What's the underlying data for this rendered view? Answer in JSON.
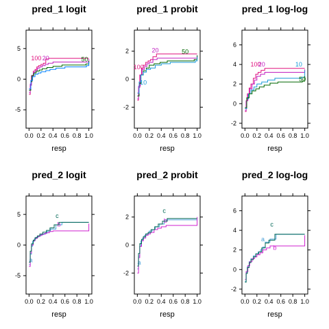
{
  "chart_data": [
    {
      "type": "line",
      "title": "pred_1 logit",
      "xlabel": "resp",
      "ylabel": "",
      "xlim": [
        -0.05,
        1.05
      ],
      "ylim": [
        -8,
        8
      ],
      "xticks": [
        "0.0",
        "0.2",
        "0.4",
        "0.6",
        "0.8",
        "1.0"
      ],
      "yticks": [
        "-5",
        "0",
        "5"
      ],
      "series": [
        {
          "name": "100",
          "color": "#e0117f",
          "label_x": 0.12,
          "label_y": 3.1,
          "x": [
            0.0,
            0.02,
            0.04,
            0.07,
            0.1,
            0.13,
            0.16,
            0.2,
            0.24,
            0.28,
            0.33,
            0.6,
            0.98,
            1.0
          ],
          "y": [
            -2.5,
            -1.0,
            0.5,
            1.3,
            1.6,
            2.0,
            2.2,
            2.4,
            2.6,
            3.3,
            3.4,
            3.4,
            3.4,
            3.4
          ]
        },
        {
          "name": "20",
          "color": "#c020c0",
          "label_x": 0.28,
          "label_y": 3.1,
          "x": [
            0.0,
            0.02,
            0.04,
            0.07,
            0.1,
            0.14,
            0.18,
            0.22,
            0.27,
            0.32,
            0.4,
            0.97,
            1.0
          ],
          "y": [
            -2.2,
            -0.8,
            0.6,
            1.1,
            1.4,
            1.8,
            2.0,
            2.2,
            2.4,
            2.6,
            2.8,
            2.8,
            3.3
          ]
        },
        {
          "name": "50",
          "color": "#006600",
          "label_x": 0.93,
          "label_y": 2.9,
          "x": [
            0.0,
            0.03,
            0.05,
            0.08,
            0.12,
            0.17,
            0.22,
            0.3,
            0.4,
            0.55,
            0.95,
            1.0
          ],
          "y": [
            -1.8,
            -0.4,
            0.6,
            1.0,
            1.3,
            1.5,
            1.7,
            1.9,
            2.1,
            2.3,
            2.5,
            3.0
          ]
        },
        {
          "name": "",
          "color": "#0080ff",
          "label_x": 0.96,
          "label_y": 3.0,
          "x": [
            0.0,
            0.03,
            0.06,
            0.1,
            0.15,
            0.2,
            0.28,
            0.35,
            0.45,
            0.6,
            0.96,
            1.0
          ],
          "y": [
            -1.6,
            -0.2,
            0.4,
            0.8,
            1.0,
            1.2,
            1.4,
            1.6,
            1.8,
            2.0,
            2.2,
            2.8
          ]
        }
      ]
    },
    {
      "type": "line",
      "title": "pred_1 probit",
      "xlabel": "resp",
      "ylabel": "",
      "xlim": [
        -0.05,
        1.05
      ],
      "ylim": [
        -3.5,
        3.5
      ],
      "xticks": [
        "0.0",
        "0.2",
        "0.4",
        "0.6",
        "0.8",
        "1.0"
      ],
      "yticks": [
        "-2",
        "0",
        "2"
      ],
      "series": [
        {
          "name": "100",
          "color": "#e0117f",
          "label_x": 0.02,
          "label_y": 0.7,
          "x": [
            0.0,
            0.02,
            0.04,
            0.07,
            0.1,
            0.14,
            0.18,
            0.22,
            0.26,
            0.32,
            0.98,
            1.0
          ],
          "y": [
            -1.5,
            -0.6,
            0.3,
            0.8,
            1.0,
            1.2,
            1.3,
            1.4,
            1.6,
            1.8,
            1.8,
            1.8
          ]
        },
        {
          "name": "20",
          "color": "#c020c0",
          "label_x": 0.3,
          "label_y": 1.9,
          "x": [
            0.0,
            0.02,
            0.05,
            0.08,
            0.12,
            0.16,
            0.2,
            0.26,
            0.33,
            0.98,
            1.0
          ],
          "y": [
            -1.4,
            -0.5,
            0.3,
            0.7,
            0.9,
            1.1,
            1.2,
            1.4,
            1.5,
            1.5,
            1.7
          ]
        },
        {
          "name": "50",
          "color": "#006600",
          "label_x": 0.8,
          "label_y": 1.8,
          "x": [
            0.0,
            0.03,
            0.06,
            0.1,
            0.15,
            0.2,
            0.28,
            0.38,
            0.5,
            0.95,
            1.0
          ],
          "y": [
            -1.2,
            -0.3,
            0.3,
            0.6,
            0.8,
            1.0,
            1.1,
            1.2,
            1.3,
            1.4,
            1.7
          ]
        },
        {
          "name": "10",
          "color": "#1a9ad8",
          "label_x": 0.1,
          "label_y": -0.4,
          "x": [
            0.0,
            0.03,
            0.06,
            0.1,
            0.15,
            0.22,
            0.3,
            0.4,
            0.55,
            0.97,
            1.0
          ],
          "y": [
            -1.0,
            -0.2,
            0.3,
            0.5,
            0.7,
            0.8,
            1.0,
            1.1,
            1.2,
            1.3,
            1.6
          ]
        }
      ]
    },
    {
      "type": "line",
      "title": "pred_1 log-log",
      "xlabel": "resp",
      "ylabel": "",
      "xlim": [
        -0.05,
        1.05
      ],
      "ylim": [
        -2.5,
        7.5
      ],
      "xticks": [
        "0.0",
        "0.2",
        "0.4",
        "0.6",
        "0.8",
        "1.0"
      ],
      "yticks": [
        "-2",
        "0",
        "2",
        "4",
        "6"
      ],
      "series": [
        {
          "name": "100",
          "color": "#e0117f",
          "label_x": 0.18,
          "label_y": 3.8,
          "x": [
            0.0,
            0.02,
            0.04,
            0.07,
            0.1,
            0.14,
            0.18,
            0.22,
            0.27,
            0.33,
            0.98,
            1.0
          ],
          "y": [
            -0.8,
            0.3,
            1.0,
            1.6,
            2.0,
            2.6,
            3.0,
            3.2,
            3.4,
            3.6,
            3.6,
            3.6
          ]
        },
        {
          "name": "20",
          "color": "#c020c0",
          "label_x": 0.28,
          "label_y": 3.8,
          "x": [
            0.0,
            0.02,
            0.05,
            0.08,
            0.12,
            0.16,
            0.2,
            0.26,
            0.33,
            0.98,
            1.0
          ],
          "y": [
            -0.7,
            0.3,
            1.0,
            1.5,
            2.0,
            2.4,
            2.8,
            3.0,
            3.2,
            3.2,
            3.5
          ]
        },
        {
          "name": "10",
          "color": "#1a9ad8",
          "label_x": 0.9,
          "label_y": 3.8,
          "x": [
            0.0,
            0.03,
            0.06,
            0.1,
            0.15,
            0.2,
            0.28,
            0.38,
            0.5,
            0.95,
            1.0
          ],
          "y": [
            -0.5,
            0.5,
            1.0,
            1.4,
            1.7,
            2.0,
            2.2,
            2.4,
            2.6,
            2.7,
            3.4
          ]
        },
        {
          "name": "50",
          "color": "#006600",
          "label_x": 0.96,
          "label_y": 2.3,
          "x": [
            0.0,
            0.03,
            0.07,
            0.12,
            0.18,
            0.24,
            0.32,
            0.42,
            0.55,
            0.96,
            1.0
          ],
          "y": [
            -0.4,
            0.6,
            1.0,
            1.3,
            1.5,
            1.7,
            1.9,
            2.1,
            2.2,
            2.3,
            2.8
          ]
        }
      ]
    },
    {
      "type": "line",
      "title": "pred_2 logit",
      "xlabel": "resp",
      "ylabel": "",
      "xlim": [
        -0.05,
        1.05
      ],
      "ylim": [
        -8,
        8
      ],
      "xticks": [
        "0.0",
        "0.2",
        "0.4",
        "0.6",
        "0.8",
        "1.0"
      ],
      "yticks": [
        "-5",
        "0",
        "5"
      ],
      "series": [
        {
          "name": "a",
          "color": "#4aa0d8",
          "label_x": 0.03,
          "label_y": -2.8,
          "x": [
            0.0,
            0.02,
            0.04,
            0.06,
            0.09,
            0.12,
            0.16,
            0.2,
            0.25,
            0.3,
            0.36,
            0.45,
            0.55,
            0.97,
            1.0
          ],
          "y": [
            -3.2,
            -1.5,
            -0.2,
            0.6,
            1.0,
            1.3,
            1.5,
            1.7,
            1.9,
            2.2,
            2.6,
            3.3,
            3.7,
            3.7,
            3.7
          ]
        },
        {
          "name": "b",
          "color": "#d020d0",
          "label_x": 0.5,
          "label_y": 3.0,
          "x": [
            0.0,
            0.02,
            0.04,
            0.07,
            0.1,
            0.14,
            0.18,
            0.22,
            0.28,
            0.34,
            0.4,
            0.5,
            0.96,
            1.0
          ],
          "y": [
            -3.5,
            -1.3,
            0.0,
            0.7,
            1.1,
            1.4,
            1.6,
            1.8,
            2.0,
            2.2,
            2.3,
            2.3,
            2.3,
            3.5
          ]
        },
        {
          "name": "c",
          "color": "#006655",
          "label_x": 0.47,
          "label_y": 4.4,
          "x": [
            0.0,
            0.02,
            0.04,
            0.07,
            0.1,
            0.14,
            0.18,
            0.23,
            0.29,
            0.35,
            0.42,
            0.5,
            0.97,
            1.0
          ],
          "y": [
            -2.8,
            -1.0,
            0.2,
            0.8,
            1.2,
            1.5,
            1.8,
            2.1,
            2.4,
            2.8,
            3.3,
            3.7,
            3.7,
            3.7
          ]
        }
      ]
    },
    {
      "type": "line",
      "title": "pred_2 probit",
      "xlabel": "resp",
      "ylabel": "",
      "xlim": [
        -0.05,
        1.05
      ],
      "ylim": [
        -3.5,
        3.5
      ],
      "xticks": [
        "0.0",
        "0.2",
        "0.4",
        "0.6",
        "0.8",
        "1.0"
      ],
      "yticks": [
        "-2",
        "0",
        "2"
      ],
      "series": [
        {
          "name": "a",
          "color": "#4aa0d8",
          "label_x": 0.03,
          "label_y": -1.4,
          "x": [
            0.0,
            0.02,
            0.04,
            0.06,
            0.09,
            0.12,
            0.16,
            0.2,
            0.25,
            0.3,
            0.37,
            0.45,
            0.97,
            1.0
          ],
          "y": [
            -1.7,
            -0.8,
            -0.1,
            0.3,
            0.5,
            0.7,
            0.8,
            1.0,
            1.1,
            1.3,
            1.5,
            1.8,
            1.8,
            1.8
          ]
        },
        {
          "name": "b",
          "color": "#d020d0",
          "label_x": 0.47,
          "label_y": 1.6,
          "x": [
            0.0,
            0.02,
            0.04,
            0.07,
            0.1,
            0.14,
            0.18,
            0.22,
            0.28,
            0.34,
            0.4,
            0.48,
            0.97,
            1.0
          ],
          "y": [
            -2.0,
            -0.9,
            -0.1,
            0.3,
            0.5,
            0.7,
            0.8,
            0.9,
            1.1,
            1.2,
            1.3,
            1.4,
            1.4,
            2.0
          ]
        },
        {
          "name": "c",
          "color": "#006655",
          "label_x": 0.45,
          "label_y": 2.3,
          "x": [
            0.0,
            0.02,
            0.04,
            0.07,
            0.1,
            0.14,
            0.18,
            0.23,
            0.29,
            0.35,
            0.42,
            0.5,
            0.97,
            1.0
          ],
          "y": [
            -1.5,
            -0.6,
            0.1,
            0.4,
            0.6,
            0.8,
            0.9,
            1.1,
            1.3,
            1.5,
            1.7,
            1.9,
            1.9,
            1.9
          ]
        }
      ]
    },
    {
      "type": "line",
      "title": "pred_2 log-log",
      "xlabel": "resp",
      "ylabel": "",
      "xlim": [
        -0.05,
        1.05
      ],
      "ylim": [
        -2.5,
        7.5
      ],
      "xticks": [
        "0.0",
        "0.2",
        "0.4",
        "0.6",
        "0.8",
        "1.0"
      ],
      "yticks": [
        "-2",
        "0",
        "2",
        "4",
        "6"
      ],
      "series": [
        {
          "name": "a",
          "color": "#4aa0d8",
          "label_x": 0.3,
          "label_y": 2.9,
          "x": [
            0.0,
            0.02,
            0.04,
            0.07,
            0.1,
            0.14,
            0.18,
            0.22,
            0.26,
            0.3,
            0.34,
            0.42,
            0.52,
            0.97,
            1.0
          ],
          "y": [
            -1.2,
            -0.3,
            0.3,
            0.8,
            1.1,
            1.4,
            1.6,
            1.8,
            2.0,
            2.3,
            2.8,
            3.1,
            3.6,
            3.6,
            3.6
          ]
        },
        {
          "name": "b",
          "color": "#d020d0",
          "label_x": 0.5,
          "label_y": 2.0,
          "x": [
            0.0,
            0.02,
            0.05,
            0.08,
            0.12,
            0.16,
            0.2,
            0.25,
            0.3,
            0.36,
            0.42,
            0.5,
            0.96,
            1.0
          ],
          "y": [
            -1.0,
            -0.2,
            0.4,
            0.8,
            1.1,
            1.3,
            1.5,
            1.7,
            2.0,
            2.2,
            2.4,
            2.4,
            2.4,
            3.5
          ]
        },
        {
          "name": "c",
          "color": "#006655",
          "label_x": 0.45,
          "label_y": 4.4,
          "x": [
            0.0,
            0.02,
            0.04,
            0.07,
            0.1,
            0.14,
            0.18,
            0.23,
            0.28,
            0.34,
            0.4,
            0.5,
            0.97,
            1.0
          ],
          "y": [
            -1.3,
            -0.4,
            0.2,
            0.7,
            1.0,
            1.3,
            1.6,
            1.8,
            2.2,
            2.7,
            3.0,
            3.6,
            3.6,
            3.6
          ]
        }
      ]
    }
  ]
}
